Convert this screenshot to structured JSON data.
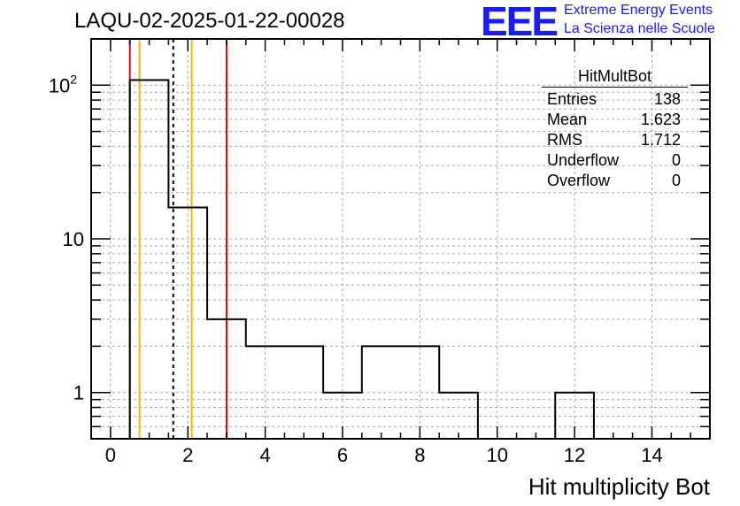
{
  "header": {
    "run_title": "LAQU-02-2025-01-22-00028",
    "logo_text": "EEE",
    "org_line1": "Extreme Energy Events",
    "org_line2": "La Scienza nelle Scuole"
  },
  "stats": {
    "title": "HitMultBot",
    "rows": [
      {
        "label": "Entries",
        "value": "138"
      },
      {
        "label": "Mean",
        "value": "1.623"
      },
      {
        "label": "RMS",
        "value": "1.712"
      },
      {
        "label": "Underflow",
        "value": "0"
      },
      {
        "label": "Overflow",
        "value": "0"
      }
    ]
  },
  "chart_data": {
    "type": "bar",
    "title": "LAQU-02-2025-01-22-00028",
    "xlabel": "Hit multiplicity Bot",
    "ylabel": "",
    "y_scale": "log",
    "xlim": [
      -0.5,
      15.5
    ],
    "ylim": [
      0.5,
      200
    ],
    "grid": true,
    "x_ticks": [
      0,
      2,
      4,
      6,
      8,
      10,
      12,
      14
    ],
    "x_tick_labels": [
      "0",
      "2",
      "4",
      "6",
      "8",
      "10",
      "12",
      "14"
    ],
    "y_ticks": [
      1,
      10,
      100
    ],
    "y_tick_labels": [
      "1",
      "10",
      "10^2"
    ],
    "bin_edges": [
      0.5,
      1.5,
      2.5,
      3.5,
      4.5,
      5.5,
      6.5,
      7.5,
      8.5,
      9.5,
      10.5,
      11.5,
      12.5
    ],
    "counts": [
      108,
      16,
      3,
      2,
      2,
      1,
      2,
      2,
      1,
      0,
      0,
      1
    ],
    "vertical_lines": [
      {
        "x": 0.5,
        "color": "#e00000",
        "style": "solid"
      },
      {
        "x": 0.75,
        "color": "#f5b800",
        "style": "solid"
      },
      {
        "x": 1.623,
        "color": "#000000",
        "style": "dashed"
      },
      {
        "x": 2.1,
        "color": "#f5b800",
        "style": "solid"
      },
      {
        "x": 3.0,
        "color": "#e00000",
        "style": "solid"
      }
    ],
    "colors": {
      "histogram": "#000000",
      "grid": "#aaaaaa"
    }
  }
}
